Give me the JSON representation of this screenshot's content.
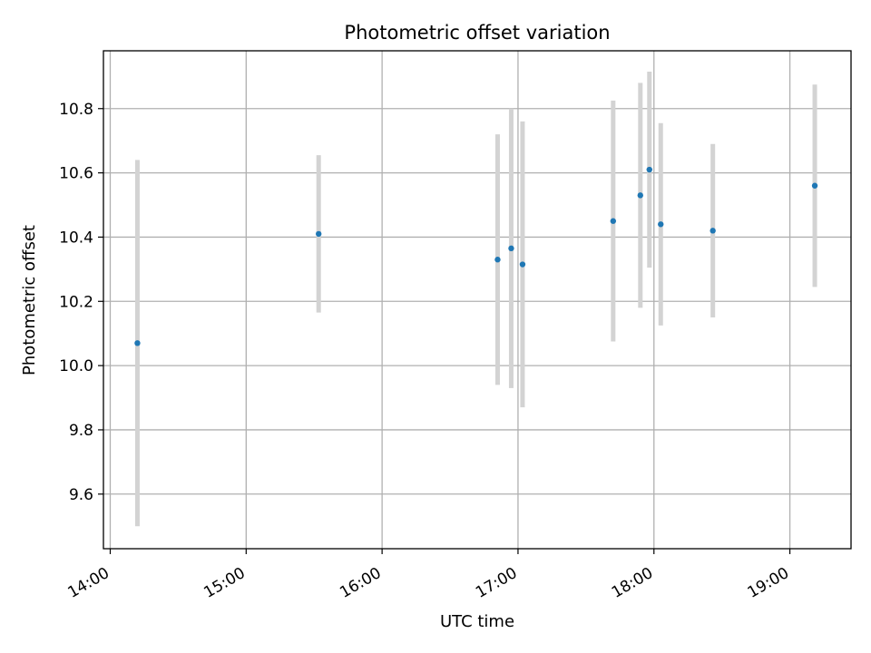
{
  "chart_data": {
    "type": "scatter",
    "title": "Photometric offset variation",
    "xlabel": "UTC time",
    "ylabel": "Photometric offset",
    "x_ticks": [
      "14:00",
      "15:00",
      "16:00",
      "17:00",
      "18:00",
      "19:00"
    ],
    "y_ticks": [
      "9.6",
      "9.8",
      "10.0",
      "10.2",
      "10.4",
      "10.6",
      "10.8"
    ],
    "xlim": [
      "13:57",
      "19:27"
    ],
    "ylim": [
      9.43,
      10.98
    ],
    "grid": true,
    "legend": "none",
    "colors": {
      "point": "#1f77b4",
      "errorbar": "#d3d3d3",
      "grid": "#b0b0b0"
    },
    "series": [
      {
        "points": [
          {
            "x": "14:12",
            "y": 10.07,
            "yerr": 0.57
          },
          {
            "x": "15:32",
            "y": 10.41,
            "yerr": 0.245
          },
          {
            "x": "16:51",
            "y": 10.33,
            "yerr": 0.39
          },
          {
            "x": "16:57",
            "y": 10.365,
            "yerr": 0.435
          },
          {
            "x": "17:02",
            "y": 10.315,
            "yerr": 0.445
          },
          {
            "x": "17:42",
            "y": 10.45,
            "yerr": 0.375
          },
          {
            "x": "17:54",
            "y": 10.53,
            "yerr": 0.35
          },
          {
            "x": "17:58",
            "y": 10.61,
            "yerr": 0.305
          },
          {
            "x": "18:03",
            "y": 10.44,
            "yerr": 0.315
          },
          {
            "x": "18:26",
            "y": 10.42,
            "yerr": 0.27
          },
          {
            "x": "19:11",
            "y": 10.56,
            "yerr": 0.315
          }
        ]
      }
    ]
  }
}
